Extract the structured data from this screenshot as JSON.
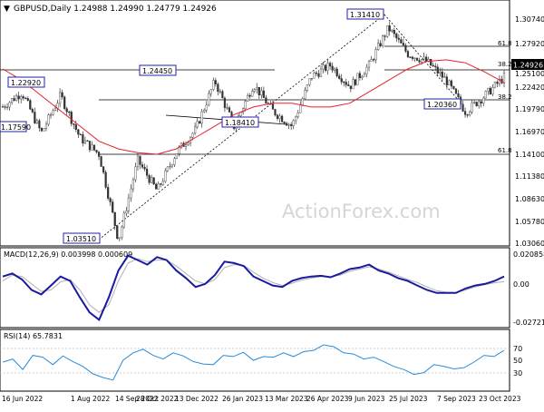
{
  "chart_data": [
    {
      "type": "candlestick",
      "title": "GBPUSD,Daily  1.24988 1.24990 1.24779 1.24926",
      "watermark": "ActionForex.com",
      "ylim": [
        1.0288,
        1.3291
      ],
      "y_ticks": [
        "1.30740",
        "1.27920",
        "1.25100",
        "1.22420",
        "1.19790",
        "1.16970",
        "1.14100",
        "1.11380",
        "1.08630",
        "1.05780",
        "1.03060"
      ],
      "current_price": "1.24926",
      "x_ticks": [
        "16 Jun 2022",
        "1 Aug 2022",
        "14 Sep 2022",
        "28 Oct 2022",
        "13 Dec 2022",
        "26 Jan 2023",
        "13 Mar 2023",
        "26 Apr 2023",
        "9 Jun 2023",
        "25 Jul 2023",
        "7 Sep 2023",
        "23 Oct 2023"
      ],
      "price_labels": [
        "1.31410",
        "1.24450",
        "1.22920",
        "1.17590",
        "1.18410",
        "1.20360",
        "1.03510"
      ],
      "fib_labels": [
        "61.8",
        "38.2",
        "38.2",
        "61.8"
      ],
      "fib_levels": [
        1.2792,
        1.2493,
        1.2115,
        1.1432
      ],
      "swing_points": [
        {
          "date": "16 Jun 2022",
          "close": 1.2105
        },
        {
          "date": "27 Jun 2022",
          "close": 1.2292
        },
        {
          "date": "14 Jul 2022",
          "close": 1.1759
        },
        {
          "date": "1 Aug 2022",
          "close": 1.225
        },
        {
          "date": "25 Aug 2022",
          "close": 1.17
        },
        {
          "date": "14 Sep 2022",
          "close": 1.148
        },
        {
          "date": "26 Sep 2022",
          "close": 1.0351
        },
        {
          "date": "5 Oct 2022",
          "close": 1.14
        },
        {
          "date": "12 Oct 2022",
          "close": 1.1
        },
        {
          "date": "28 Oct 2022",
          "close": 1.15
        },
        {
          "date": "13 Nov 2022",
          "close": 1.18
        },
        {
          "date": "13 Dec 2022",
          "close": 1.2445
        },
        {
          "date": "5 Jan 2023",
          "close": 1.1841
        },
        {
          "date": "23 Jan 2023",
          "close": 1.24
        },
        {
          "date": "13 Feb 2023",
          "close": 1.205
        },
        {
          "date": "8 Mar 2023",
          "close": 1.185
        },
        {
          "date": "26 Apr 2023",
          "close": 1.25
        },
        {
          "date": "10 May 2023",
          "close": 1.265
        },
        {
          "date": "24 May 2023",
          "close": 1.237
        },
        {
          "date": "9 Jun 2023",
          "close": 1.265
        },
        {
          "date": "14 Jul 2023",
          "close": 1.3141
        },
        {
          "date": "25 Jul 2023",
          "close": 1.28
        },
        {
          "date": "10 Aug 2023",
          "close": 1.27
        },
        {
          "date": "7 Sep 2023",
          "close": 1.245
        },
        {
          "date": "4 Oct 2023",
          "close": 1.2036
        },
        {
          "date": "23 Oct 2023",
          "close": 1.225
        },
        {
          "date": "1 Nov 2023",
          "close": 1.2493
        }
      ],
      "moving_average_points": [
        1.26,
        1.245,
        1.225,
        1.205,
        1.185,
        1.165,
        1.155,
        1.15,
        1.148,
        1.155,
        1.17,
        1.185,
        1.2,
        1.21,
        1.215,
        1.215,
        1.21,
        1.21,
        1.215,
        1.23,
        1.245,
        1.26,
        1.27,
        1.272,
        1.268,
        1.256,
        1.242
      ],
      "colors": {
        "candles": "#333333",
        "moving_average": "#e8202a",
        "guide_lines": "#000000"
      }
    },
    {
      "type": "line",
      "title": "MACD(12,26,9) 0.003998 0.000609",
      "ylim": [
        -0.02721,
        0.02086
      ],
      "y_ticks": [
        "0.020858",
        "0.00",
        "-0.027213"
      ],
      "series": [
        {
          "values": [
            0.004,
            0.006,
            0.002,
            -0.005,
            -0.008,
            -0.002,
            0.004,
            0.001,
            -0.01,
            -0.02,
            -0.025,
            -0.01,
            0.008,
            0.018,
            0.015,
            0.012,
            0.017,
            0.015,
            0.008,
            0.003,
            -0.003,
            -0.001,
            0.005,
            0.014,
            0.013,
            0.011,
            0.004,
            0.001,
            -0.002,
            -0.003,
            0.001,
            0.003,
            0.004,
            0.0045,
            0.0035,
            0.006,
            0.009,
            0.01,
            0.012,
            0.008,
            0.006,
            0.003,
            0.001,
            -0.002,
            -0.005,
            -0.007,
            -0.007,
            -0.007,
            -0.004,
            -0.002,
            -0.001,
            0.001,
            0.004
          ]
        },
        {
          "values": [
            0.001,
            0.005,
            0.004,
            -0.001,
            -0.006,
            -0.005,
            0.0005,
            0.002,
            -0.005,
            -0.015,
            -0.02,
            -0.015,
            0.001,
            0.013,
            0.016,
            0.014,
            0.015,
            0.015,
            0.011,
            0.006,
            0.001,
            -0.001,
            0.002,
            0.01,
            0.012,
            0.0115,
            0.007,
            0.003,
            0.0,
            -0.002,
            -0.0005,
            0.0015,
            0.003,
            0.004,
            0.0038,
            0.005,
            0.0075,
            0.009,
            0.0105,
            0.009,
            0.007,
            0.0045,
            0.002,
            0.0,
            -0.003,
            -0.0055,
            -0.0065,
            -0.0068,
            -0.005,
            -0.003,
            -0.0015,
            -0.0002,
            0.0006
          ]
        }
      ],
      "colors": {
        "macd": "#1a1aa0",
        "signal": "#b0b0b0"
      }
    },
    {
      "type": "line",
      "title": "RSI(14) 65.7831",
      "ylim": [
        0,
        100
      ],
      "y_ticks": [
        "70",
        "50",
        "30"
      ],
      "levels": [
        70,
        30
      ],
      "series": [
        {
          "values": [
            47,
            52,
            35,
            58,
            55,
            43,
            57,
            48,
            40,
            28,
            22,
            18,
            50,
            62,
            68,
            58,
            52,
            62,
            57,
            48,
            44,
            43,
            58,
            56,
            63,
            50,
            56,
            55,
            62,
            56,
            64,
            66,
            75,
            72,
            62,
            60,
            52,
            55,
            48,
            40,
            35,
            27,
            30,
            43,
            40,
            36,
            38,
            47,
            58,
            56,
            66
          ]
        }
      ],
      "colors": {
        "rsi": "#2a8bd8",
        "levels": "#c0c0c0"
      }
    }
  ]
}
